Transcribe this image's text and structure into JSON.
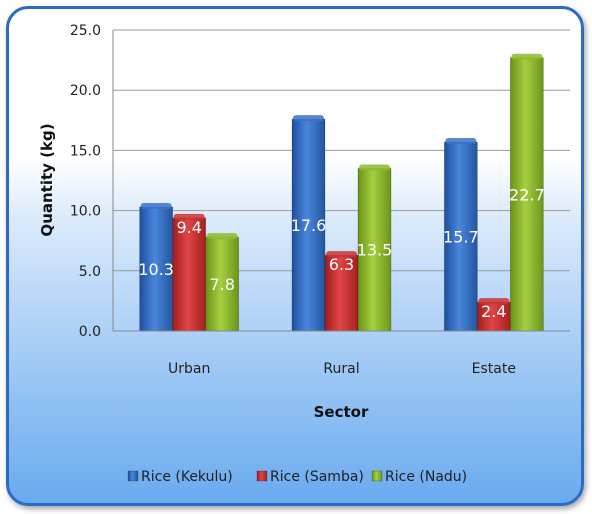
{
  "chart_data": {
    "type": "bar",
    "xlabel": "Sector",
    "ylabel": "Quantity (kg)",
    "categories": [
      "Urban",
      "Rural",
      "Estate"
    ],
    "series": [
      {
        "name": "Rice (Kekulu)",
        "color": "#3a73c9",
        "values": [
          10.3,
          17.6,
          15.7
        ]
      },
      {
        "name": "Rice (Samba)",
        "color": "#cc3333",
        "values": [
          9.4,
          6.3,
          2.4
        ]
      },
      {
        "name": "Rice (Nadu)",
        "color": "#8dbb2e",
        "values": [
          7.8,
          13.5,
          22.7
        ]
      }
    ],
    "ylim": [
      0,
      25
    ],
    "yticks": [
      "0.0",
      "5.0",
      "10.0",
      "15.0",
      "20.0",
      "25.0"
    ],
    "grid": true,
    "legend_position": "bottom"
  }
}
